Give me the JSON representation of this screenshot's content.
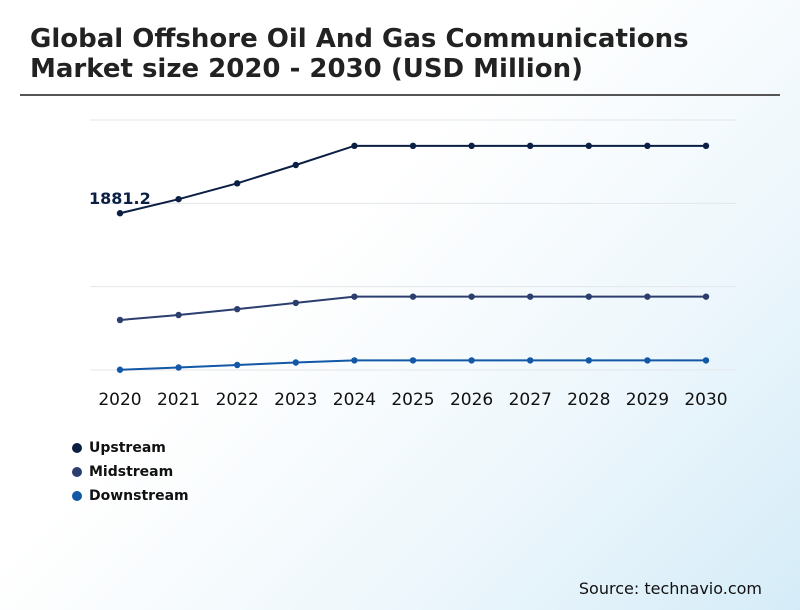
{
  "chart_data": {
    "type": "line",
    "title": "Global Offshore Oil And Gas Communications Market size 2020 - 2030 (USD Million)",
    "categories": [
      "2020",
      "2021",
      "2022",
      "2023",
      "2024",
      "2025",
      "2026",
      "2027",
      "2028",
      "2029",
      "2030"
    ],
    "series": [
      {
        "name": "Upstream",
        "color": "#0b1f45",
        "values": [
          1881.2,
          2050,
          2240,
          2460,
          2690,
          2690,
          2690,
          2690,
          2690,
          2690,
          2690
        ]
      },
      {
        "name": "Midstream",
        "color": "#2c3e6e",
        "values": [
          600,
          660,
          730,
          805,
          880,
          880,
          880,
          880,
          880,
          880,
          880
        ]
      },
      {
        "name": "Downstream",
        "color": "#1258a6",
        "values": [
          3,
          30,
          60,
          90,
          115,
          115,
          115,
          115,
          115,
          115,
          115
        ]
      }
    ],
    "annotations": [
      {
        "series": "Upstream",
        "category": "2020",
        "text": "1881.2"
      }
    ],
    "ylim": [
      0,
      3000
    ],
    "grid": true,
    "legend": "bottom-left",
    "xlabel": "",
    "ylabel": ""
  },
  "source": "Source: technavio.com"
}
